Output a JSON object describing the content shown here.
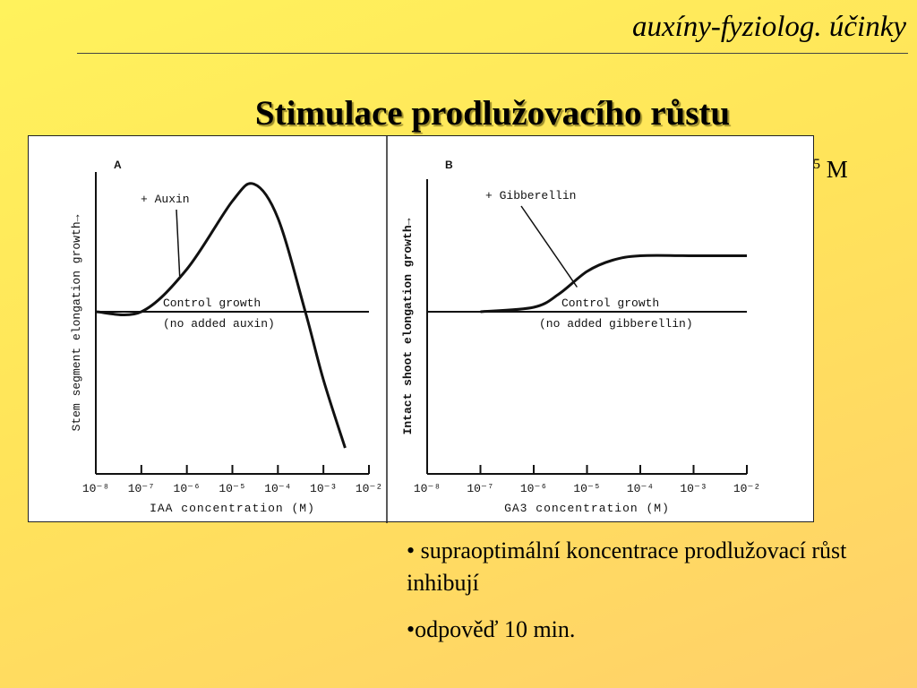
{
  "header": {
    "title": "auxíny-fyziolog. účinky"
  },
  "slide": {
    "title": "Stimulace prodlužovacího růstu",
    "partial_text": "M",
    "partial_sup": "5"
  },
  "notes": {
    "bullet1": "• supraoptimální koncentrace prodlužovací růst inhibují",
    "bullet2": "•odpověď 10 min."
  },
  "chart_data": [
    {
      "type": "line",
      "panel": "A",
      "xlabel": "IAA concentration (M)",
      "ylabel": "Stem segment elongation growth→",
      "x_scale": "log",
      "x_ticks": [
        "10⁻⁸",
        "10⁻⁷",
        "10⁻⁶",
        "10⁻⁵",
        "10⁻⁴",
        "10⁻³",
        "10⁻²"
      ],
      "series": [
        {
          "name": "+ Auxin",
          "x": [
            "1e-7",
            "1e-6",
            "1e-5",
            "3e-5",
            "1e-4",
            "4e-4",
            "1e-3",
            "3e-3"
          ],
          "y_relative": [
            0.0,
            0.5,
            1.3,
            1.5,
            1.1,
            0.0,
            -0.8,
            -1.6
          ]
        }
      ],
      "control": {
        "label1": "Control growth",
        "label2": "(no added auxin)"
      }
    },
    {
      "type": "line",
      "panel": "B",
      "xlabel": "GA3 concentration (M)",
      "ylabel": "Intact shoot elongation growth→",
      "x_scale": "log",
      "x_ticks": [
        "10⁻⁸",
        "10⁻⁷",
        "10⁻⁶",
        "10⁻⁵",
        "10⁻⁴",
        "10⁻³",
        "10⁻²"
      ],
      "series": [
        {
          "name": "+ Gibberellin",
          "x": [
            "1e-7",
            "1e-6",
            "3e-6",
            "1e-5",
            "3e-5",
            "1e-4",
            "1e-3",
            "1e-2"
          ],
          "y_relative": [
            0.0,
            0.1,
            0.4,
            0.9,
            1.15,
            1.25,
            1.25,
            1.25
          ]
        }
      ],
      "control": {
        "label1": "Control growth",
        "label2": "(no added gibberellin)"
      }
    }
  ]
}
